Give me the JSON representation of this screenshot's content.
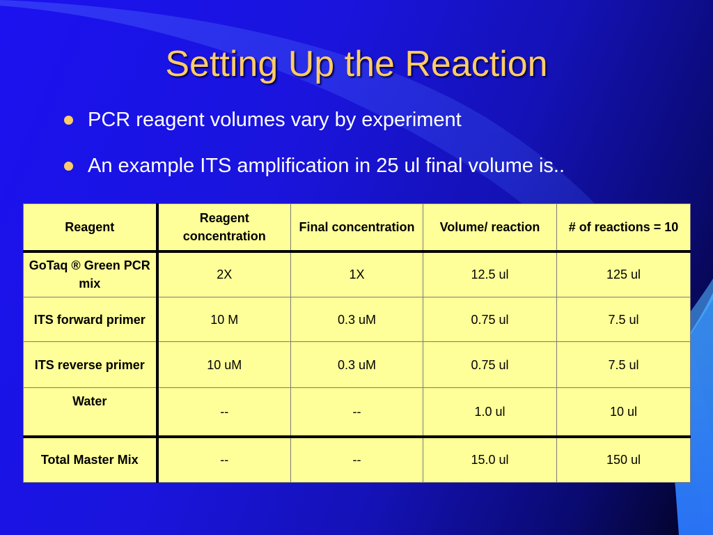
{
  "slide": {
    "title": "Setting Up the Reaction",
    "bullets": [
      "PCR reagent volumes vary by experiment",
      "An example ITS amplification in 25 ul final volume is.."
    ],
    "colors": {
      "title": "#ffcc66",
      "bullet_dot": "#ffcc66",
      "table_fill": "#ffff99",
      "background_start": "#1b12f0",
      "background_end": "#02021e"
    }
  },
  "table": {
    "headers": [
      "Reagent",
      "Reagent concentration",
      "Final concentration",
      "Volume/ reaction",
      "# of reactions = 10"
    ],
    "rows": [
      [
        "GoTaq ® Green PCR mix",
        "2X",
        "1X",
        "12.5 ul",
        "125 ul"
      ],
      [
        "ITS forward primer",
        "10 M",
        "0.3 uM",
        "0.75 ul",
        "7.5 ul"
      ],
      [
        "ITS reverse primer",
        "10 uM",
        "0.3 uM",
        "0.75 ul",
        "7.5 ul"
      ],
      [
        "Water",
        "--",
        "--",
        "1.0 ul",
        "10 ul"
      ],
      [
        "Total Master Mix",
        "--",
        "--",
        "15.0 ul",
        "150 ul"
      ]
    ]
  }
}
